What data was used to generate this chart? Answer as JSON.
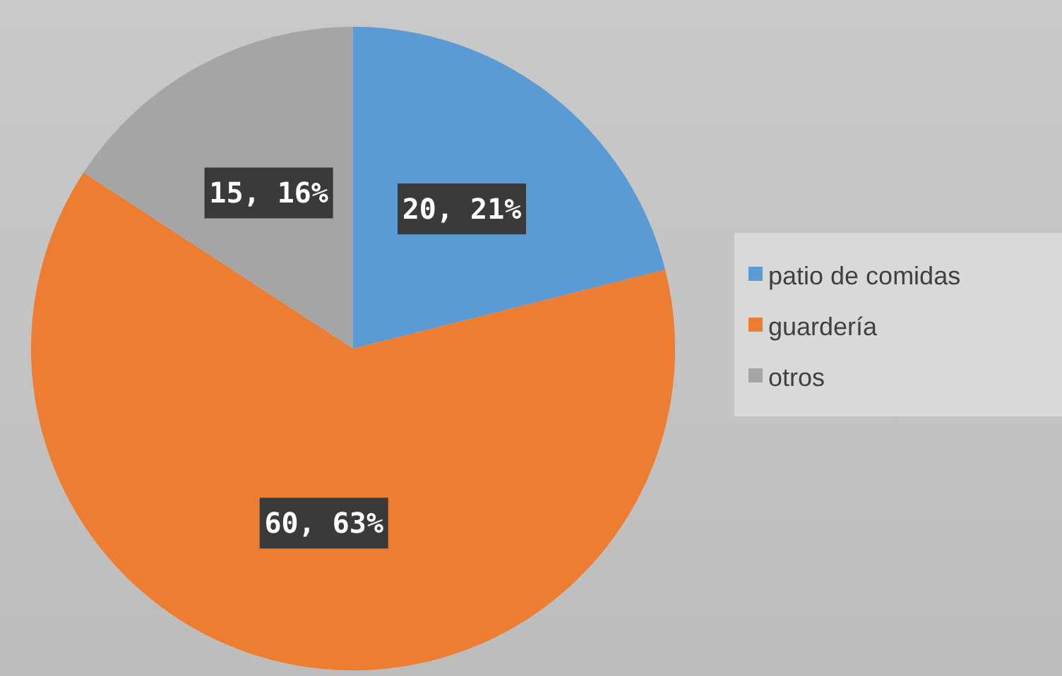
{
  "chart_data": {
    "type": "pie",
    "categories": [
      "patio de comidas",
      "guardería",
      "otros"
    ],
    "values": [
      20,
      60,
      15
    ],
    "colors": [
      "#5b9bd5",
      "#ed7d31",
      "#a5a5a5"
    ],
    "value_labels": [
      "20, 21%",
      "60, 63%",
      "15, 16%"
    ],
    "legend": "right"
  }
}
